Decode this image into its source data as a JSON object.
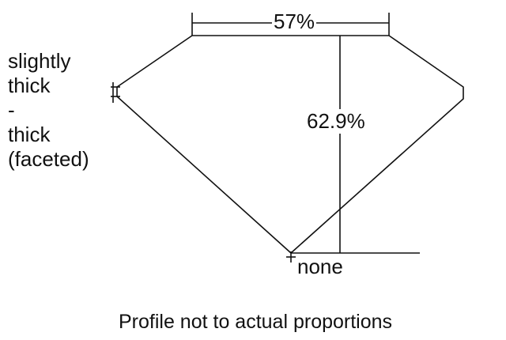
{
  "diagram": {
    "girdle_label": [
      "slightly",
      "thick",
      "-",
      "thick",
      "(faceted)"
    ],
    "table_label": "57%",
    "depth_label": "62.9%",
    "culet_label": "none",
    "caption": "Profile not to actual proportions",
    "line_color": "#111111"
  }
}
